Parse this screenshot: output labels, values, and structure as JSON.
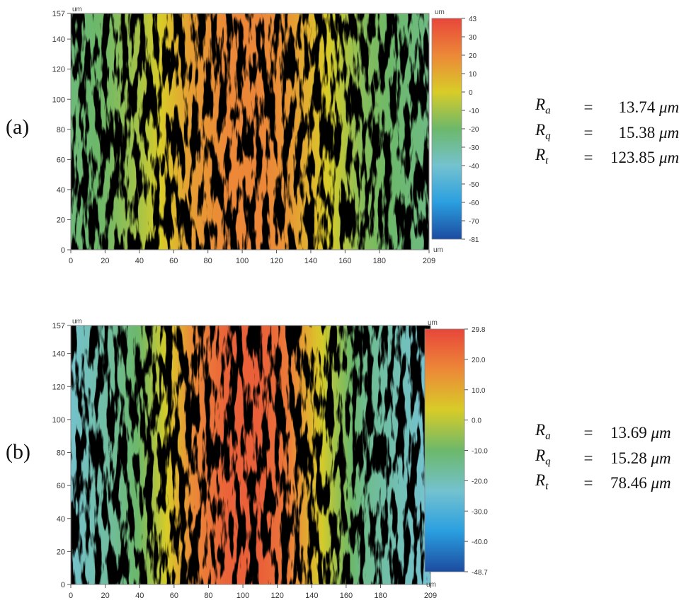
{
  "panels": [
    {
      "label": "(a)",
      "unit_label": "um",
      "metrics": [
        {
          "symbol": "R",
          "subscript": "a",
          "op": "=",
          "value": "13.74",
          "unit": "μm"
        },
        {
          "symbol": "R",
          "subscript": "q",
          "op": "=",
          "value": "15.38",
          "unit": "μm"
        },
        {
          "symbol": "R",
          "subscript": "t",
          "op": "=",
          "value": "123.85",
          "unit": "μm"
        }
      ],
      "chart_data": {
        "type": "heatmap",
        "title": "",
        "xlabel": "um",
        "ylabel": "um",
        "xlim": [
          0,
          209
        ],
        "ylim": [
          0,
          157
        ],
        "x_ticks": [
          0,
          20,
          40,
          60,
          80,
          100,
          120,
          140,
          160,
          180,
          209
        ],
        "y_ticks": [
          0,
          20,
          40,
          60,
          80,
          100,
          120,
          140,
          157
        ],
        "colorbar": {
          "unit": "um",
          "min": -81,
          "max": 43,
          "ticks": [
            "43",
            "30",
            "20",
            "10",
            "0",
            "-10",
            "-20",
            "-30",
            "-40",
            "-50",
            "-60",
            "-70",
            "-81"
          ]
        },
        "height_profile": {
          "x": [
            0,
            20,
            40,
            55,
            70,
            90,
            110,
            125,
            140,
            155,
            170,
            190,
            209
          ],
          "z": [
            -22,
            -18,
            -8,
            4,
            16,
            22,
            23,
            19,
            9,
            -2,
            -14,
            -20,
            -24
          ]
        },
        "colormap": [
          "#1c4ba0",
          "#2a9fe0",
          "#74c2cf",
          "#6cb86a",
          "#d8cc28",
          "#ec8838",
          "#e8463a"
        ]
      }
    },
    {
      "label": "(b)",
      "unit_label": "um",
      "metrics": [
        {
          "symbol": "R",
          "subscript": "a",
          "op": "=",
          "value": "13.69",
          "unit": "μm"
        },
        {
          "symbol": "R",
          "subscript": "q",
          "op": "=",
          "value": "15.28",
          "unit": "μm"
        },
        {
          "symbol": "R",
          "subscript": "t",
          "op": "=",
          "value": "78.46",
          "unit": "μm"
        }
      ],
      "chart_data": {
        "type": "heatmap",
        "title": "",
        "xlabel": "um",
        "ylabel": "um",
        "xlim": [
          0,
          209
        ],
        "ylim": [
          0,
          157
        ],
        "x_ticks": [
          0,
          20,
          40,
          60,
          80,
          100,
          120,
          140,
          160,
          180,
          209
        ],
        "y_ticks": [
          0,
          20,
          40,
          60,
          80,
          100,
          120,
          140,
          157
        ],
        "colorbar": {
          "unit": "um",
          "min": -48.7,
          "max": 29.8,
          "ticks": [
            "29.8",
            "20.0",
            "10.0",
            "0.0",
            "-10.0",
            "-20.0",
            "-30.0",
            "-40.0",
            "-48.7"
          ]
        },
        "height_profile": {
          "x": [
            0,
            20,
            40,
            55,
            70,
            90,
            110,
            125,
            140,
            155,
            170,
            190,
            209
          ],
          "z": [
            -22,
            -17,
            -9,
            3,
            16,
            24,
            25,
            20,
            8,
            -4,
            -14,
            -19,
            -23
          ]
        },
        "colormap": [
          "#1c4ba0",
          "#2a9fe0",
          "#74c2cf",
          "#6cb86a",
          "#d8cc28",
          "#ec8838",
          "#e8463a"
        ]
      }
    }
  ]
}
